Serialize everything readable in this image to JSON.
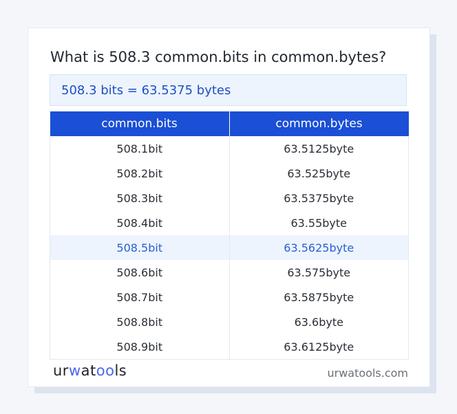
{
  "title": "What is 508.3 common.bits in common.bytes?",
  "result": "508.3 bits = 63.5375 bytes",
  "table": {
    "headers": [
      "common.bits",
      "common.bytes"
    ],
    "rows": [
      [
        "508.1bit",
        "63.5125byte"
      ],
      [
        "508.2bit",
        "63.525byte"
      ],
      [
        "508.3bit",
        "63.5375byte"
      ],
      [
        "508.4bit",
        "63.55byte"
      ],
      [
        "508.5bit",
        "63.5625byte"
      ],
      [
        "508.6bit",
        "63.575byte"
      ],
      [
        "508.7bit",
        "63.5875byte"
      ],
      [
        "508.8bit",
        "63.6byte"
      ],
      [
        "508.9bit",
        "63.6125byte"
      ]
    ],
    "highlighted_row": 4
  },
  "footer": {
    "logo_text": "urwatools",
    "site": "urwatools.com"
  },
  "colors": {
    "accent": "#1a4fd6",
    "highlight_bg": "#edf4fe"
  }
}
